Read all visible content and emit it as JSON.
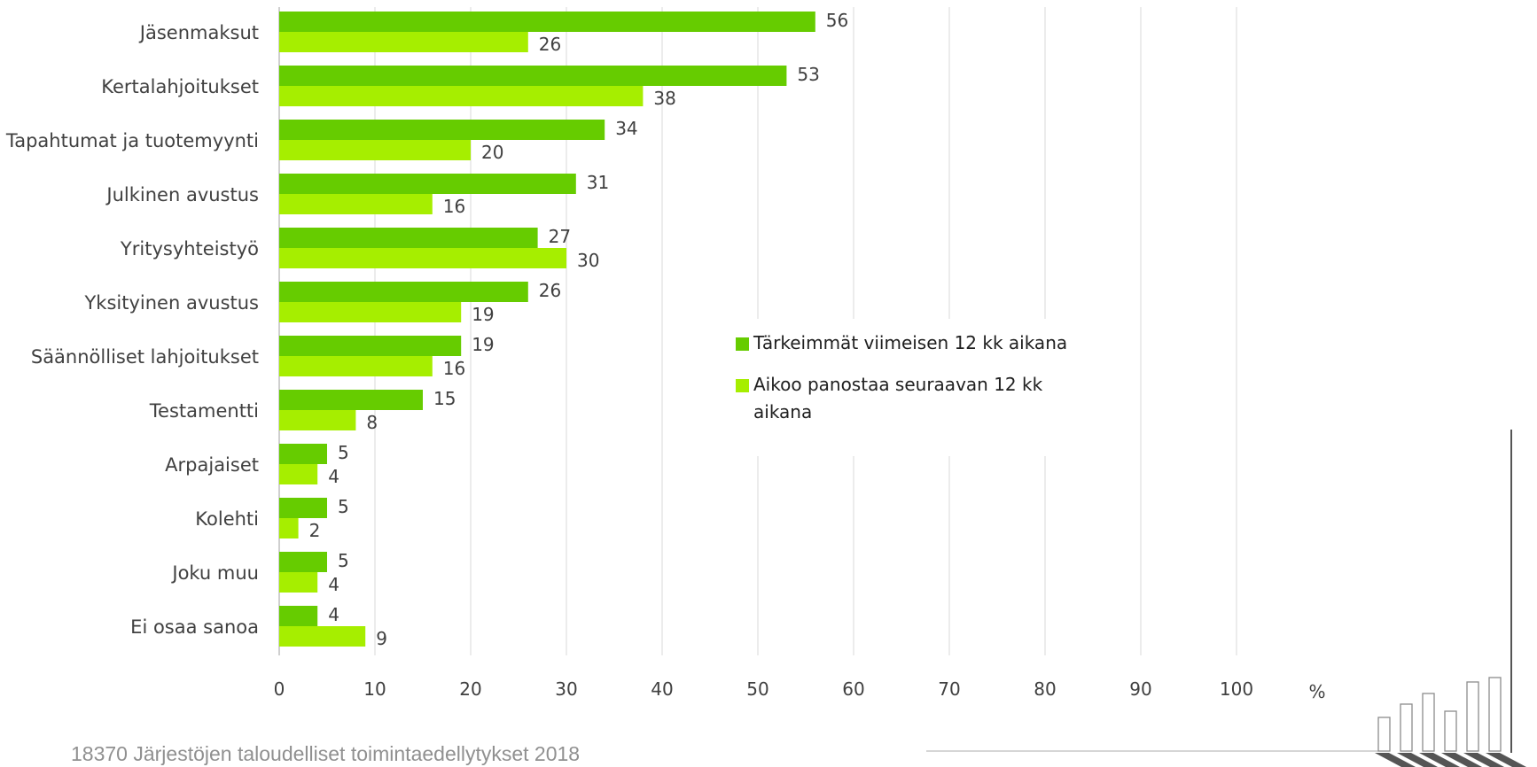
{
  "footer_text": "18370 Järjestöjen taloudelliset toimintaedellytykset 2018",
  "chart_data": {
    "type": "bar",
    "orientation": "horizontal",
    "categories": [
      "Jäsenmaksut",
      "Kertalahjoitukset",
      "Tapahtumat ja tuotemyynti",
      "Julkinen avustus",
      "Yritysyhteistyö",
      "Yksityinen avustus",
      "Säännölliset lahjoitukset",
      "Testamentti",
      "Arpajaiset",
      "Kolehti",
      "Joku muu",
      "Ei osaa sanoa"
    ],
    "series": [
      {
        "name": "Tärkeimmät viimeisen 12 kk aikana",
        "color": "#66cc00",
        "values": [
          56,
          53,
          34,
          31,
          27,
          26,
          19,
          15,
          5,
          5,
          5,
          4
        ]
      },
      {
        "name": "Aikoo panostaa seuraavan 12 kk aikana",
        "color": "#a6ee00",
        "values": [
          26,
          38,
          20,
          16,
          30,
          19,
          16,
          8,
          4,
          2,
          4,
          9
        ]
      }
    ],
    "x_ticks": [
      "0",
      "10",
      "20",
      "30",
      "40",
      "50",
      "60",
      "70",
      "80",
      "90",
      "100"
    ],
    "x_unit_label": "%",
    "xlim": [
      0,
      100
    ],
    "grid": true,
    "legend_position": "center-right",
    "data_labels": true
  }
}
